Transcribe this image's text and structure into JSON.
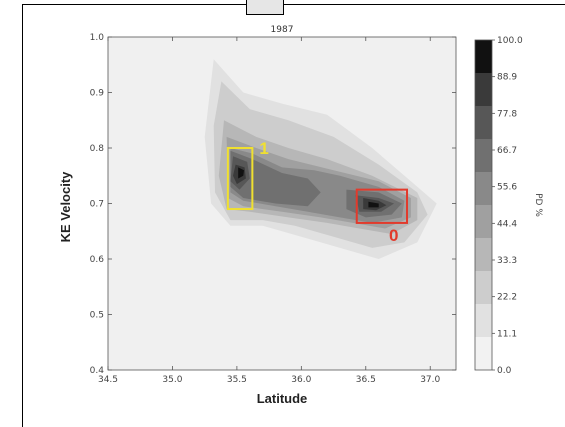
{
  "chart_data": {
    "type": "heatmap",
    "title": "1987",
    "xlabel": "Latitude",
    "ylabel": "KE Velocity",
    "xlim": [
      34.5,
      37.2
    ],
    "ylim": [
      0.4,
      1.0
    ],
    "x_ticks": [
      "34.5",
      "35.0",
      "35.5",
      "36.0",
      "36.5",
      "37.0"
    ],
    "y_ticks": [
      "0.4",
      "0.5",
      "0.6",
      "0.7",
      "0.8",
      "0.9",
      "1.0"
    ],
    "colorbar_label": "PD %",
    "colorbar_ticks": [
      "0.0",
      "11.1",
      "22.2",
      "33.3",
      "44.4",
      "55.6",
      "66.7",
      "77.8",
      "88.9",
      "100.0"
    ],
    "colorbar_colors": [
      "#f2f2f2",
      "#e1e1e1",
      "#cdcdcd",
      "#b7b7b7",
      "#a0a0a0",
      "#898989",
      "#707070",
      "#575757",
      "#3a3a3a",
      "#111111"
    ],
    "contour_levels": [
      {
        "level": 1,
        "points": [
          [
            35.32,
            0.96
          ],
          [
            35.55,
            0.9
          ],
          [
            35.85,
            0.88
          ],
          [
            36.2,
            0.86
          ],
          [
            36.55,
            0.8
          ],
          [
            36.85,
            0.74
          ],
          [
            37.05,
            0.7
          ],
          [
            36.9,
            0.63
          ],
          [
            36.6,
            0.6
          ],
          [
            36.3,
            0.62
          ],
          [
            36.0,
            0.64
          ],
          [
            35.7,
            0.66
          ],
          [
            35.45,
            0.66
          ],
          [
            35.3,
            0.7
          ],
          [
            35.25,
            0.82
          ]
        ]
      },
      {
        "level": 2,
        "points": [
          [
            35.38,
            0.92
          ],
          [
            35.6,
            0.87
          ],
          [
            35.9,
            0.85
          ],
          [
            36.25,
            0.82
          ],
          [
            36.6,
            0.77
          ],
          [
            36.9,
            0.72
          ],
          [
            36.98,
            0.68
          ],
          [
            36.8,
            0.63
          ],
          [
            36.55,
            0.62
          ],
          [
            36.25,
            0.64
          ],
          [
            35.95,
            0.66
          ],
          [
            35.7,
            0.67
          ],
          [
            35.45,
            0.67
          ],
          [
            35.33,
            0.72
          ],
          [
            35.32,
            0.84
          ]
        ]
      },
      {
        "level": 3,
        "points": [
          [
            35.4,
            0.85
          ],
          [
            35.65,
            0.82
          ],
          [
            35.9,
            0.8
          ],
          [
            36.2,
            0.78
          ],
          [
            36.55,
            0.75
          ],
          [
            36.9,
            0.71
          ],
          [
            36.9,
            0.67
          ],
          [
            36.7,
            0.645
          ],
          [
            36.45,
            0.655
          ],
          [
            36.2,
            0.665
          ],
          [
            35.9,
            0.675
          ],
          [
            35.6,
            0.685
          ],
          [
            35.42,
            0.69
          ],
          [
            35.36,
            0.75
          ]
        ]
      },
      {
        "level": 4,
        "points": [
          [
            35.42,
            0.82
          ],
          [
            35.65,
            0.8
          ],
          [
            35.9,
            0.78
          ],
          [
            36.25,
            0.76
          ],
          [
            36.6,
            0.74
          ],
          [
            36.85,
            0.71
          ],
          [
            36.85,
            0.675
          ],
          [
            36.65,
            0.655
          ],
          [
            36.4,
            0.665
          ],
          [
            36.15,
            0.675
          ],
          [
            35.85,
            0.685
          ],
          [
            35.55,
            0.695
          ],
          [
            35.43,
            0.71
          ]
        ]
      },
      {
        "level": 5,
        "points": [
          [
            35.45,
            0.8
          ],
          [
            35.62,
            0.79
          ],
          [
            35.85,
            0.765
          ],
          [
            36.1,
            0.76
          ],
          [
            36.3,
            0.75
          ],
          [
            36.6,
            0.73
          ],
          [
            36.8,
            0.705
          ],
          [
            36.78,
            0.675
          ],
          [
            36.55,
            0.665
          ],
          [
            36.3,
            0.675
          ],
          [
            36.05,
            0.685
          ],
          [
            35.8,
            0.695
          ],
          [
            35.55,
            0.705
          ],
          [
            35.45,
            0.72
          ]
        ]
      },
      {
        "level": 6,
        "points": [
          [
            35.45,
            0.795
          ],
          [
            35.62,
            0.78
          ],
          [
            35.85,
            0.755
          ],
          [
            36.05,
            0.745
          ],
          [
            36.15,
            0.72
          ],
          [
            36.05,
            0.695
          ],
          [
            35.8,
            0.7
          ],
          [
            35.55,
            0.71
          ],
          [
            35.45,
            0.73
          ]
        ]
      },
      {
        "level": 6,
        "points": [
          [
            36.35,
            0.725
          ],
          [
            36.6,
            0.72
          ],
          [
            36.78,
            0.7
          ],
          [
            36.7,
            0.68
          ],
          [
            36.5,
            0.675
          ],
          [
            36.35,
            0.69
          ]
        ]
      },
      {
        "level": 7,
        "points": [
          [
            35.47,
            0.785
          ],
          [
            35.58,
            0.775
          ],
          [
            35.6,
            0.745
          ],
          [
            35.52,
            0.725
          ],
          [
            35.45,
            0.74
          ]
        ]
      },
      {
        "level": 7,
        "points": [
          [
            36.42,
            0.715
          ],
          [
            36.6,
            0.71
          ],
          [
            36.72,
            0.7
          ],
          [
            36.62,
            0.685
          ],
          [
            36.45,
            0.685
          ]
        ]
      },
      {
        "level": 8,
        "points": [
          [
            35.49,
            0.77
          ],
          [
            35.56,
            0.765
          ],
          [
            35.57,
            0.745
          ],
          [
            35.5,
            0.735
          ],
          [
            35.47,
            0.75
          ]
        ]
      },
      {
        "level": 8,
        "points": [
          [
            36.48,
            0.71
          ],
          [
            36.6,
            0.705
          ],
          [
            36.66,
            0.697
          ],
          [
            36.58,
            0.688
          ],
          [
            36.48,
            0.69
          ]
        ]
      },
      {
        "level": 9,
        "points": [
          [
            35.51,
            0.765
          ],
          [
            35.555,
            0.76
          ],
          [
            35.55,
            0.75
          ],
          [
            35.51,
            0.745
          ]
        ]
      },
      {
        "level": 9,
        "points": [
          [
            36.52,
            0.703
          ],
          [
            36.6,
            0.7
          ],
          [
            36.6,
            0.693
          ],
          [
            36.52,
            0.693
          ]
        ]
      }
    ],
    "annotations": [
      {
        "label": "1",
        "x0": 35.43,
        "x1": 35.62,
        "y0": 0.69,
        "y1": 0.8,
        "color": "#f0e030"
      },
      {
        "label": "0",
        "x0": 36.43,
        "x1": 36.82,
        "y0": 0.665,
        "y1": 0.725,
        "color": "#e23a2c"
      }
    ]
  }
}
